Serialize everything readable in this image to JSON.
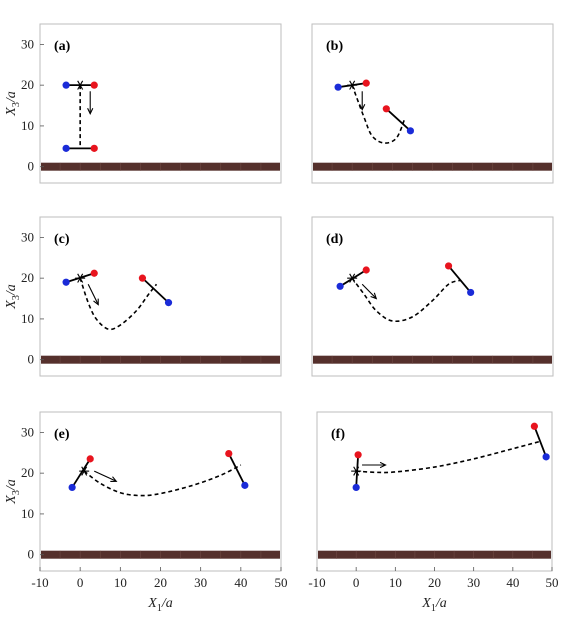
{
  "colors": {
    "wall": "#55302c",
    "wall_seam": "#6f4944",
    "red": "#e8141e",
    "blue": "#1a2bd8",
    "line": "#000000",
    "frame": "#bdbdbd"
  },
  "axis_labels": {
    "xlabel_base": "X",
    "xlabel_sub": "1",
    "xlabel_tail": "/a",
    "ylabel_base": "X",
    "ylabel_sub": "3",
    "ylabel_tail": "/a"
  },
  "chart_data": [
    {
      "type": "line",
      "panel_label": "(a)",
      "xlim": [
        -10,
        50
      ],
      "ylim": [
        -4,
        35
      ],
      "yticks": [
        0,
        10,
        20,
        30
      ],
      "xticks": [],
      "show_ylabel": true,
      "show_xlabel": false,
      "wall_y": 0,
      "path": [
        [
          0,
          20
        ],
        [
          0,
          4.5
        ]
      ],
      "rods": [
        {
          "red": [
            3.5,
            20
          ],
          "blue": [
            -3.5,
            20
          ]
        },
        {
          "red": [
            3.5,
            4.5
          ],
          "blue": [
            -3.5,
            4.5
          ]
        }
      ],
      "start": [
        0,
        20
      ],
      "arrow": {
        "from": [
          2.5,
          18.5
        ],
        "to": [
          2.5,
          13
        ]
      }
    },
    {
      "type": "line",
      "panel_label": "(b)",
      "xlim": [
        -10,
        50
      ],
      "ylim": [
        -4,
        35
      ],
      "yticks": [],
      "xticks": [],
      "show_ylabel": false,
      "show_xlabel": false,
      "wall_y": 0,
      "path": [
        [
          0,
          20
        ],
        [
          3,
          12
        ],
        [
          5,
          7.5
        ],
        [
          8,
          5.8
        ],
        [
          11,
          7
        ],
        [
          13,
          11.5
        ]
      ],
      "rods": [
        {
          "red": [
            3.5,
            20.5
          ],
          "blue": [
            -3.5,
            19.5
          ]
        },
        {
          "red": [
            8.5,
            14.2
          ],
          "blue": [
            14.5,
            8.8
          ]
        }
      ],
      "start": [
        0,
        20
      ],
      "arrow": {
        "from": [
          2.5,
          18.5
        ],
        "to": [
          2.5,
          14
        ]
      }
    },
    {
      "type": "line",
      "panel_label": "(c)",
      "xlim": [
        -10,
        50
      ],
      "ylim": [
        -4,
        35
      ],
      "yticks": [
        0,
        10,
        20,
        30
      ],
      "xticks": [],
      "show_ylabel": true,
      "show_xlabel": false,
      "wall_y": 0,
      "path": [
        [
          0,
          20
        ],
        [
          2,
          14
        ],
        [
          4,
          10
        ],
        [
          7,
          7.5
        ],
        [
          10,
          8.5
        ],
        [
          14,
          12
        ],
        [
          17,
          16
        ],
        [
          19,
          18.5
        ]
      ],
      "rods": [
        {
          "red": [
            3.5,
            21.2
          ],
          "blue": [
            -3.5,
            19
          ]
        },
        {
          "red": [
            15.5,
            20
          ],
          "blue": [
            22,
            14
          ]
        }
      ],
      "start": [
        0,
        20
      ],
      "arrow": {
        "from": [
          2,
          18.5
        ],
        "to": [
          4.5,
          13.5
        ]
      }
    },
    {
      "type": "line",
      "panel_label": "(d)",
      "xlim": [
        -10,
        50
      ],
      "ylim": [
        -4,
        35
      ],
      "yticks": [],
      "xticks": [],
      "show_ylabel": false,
      "show_xlabel": false,
      "wall_y": 0,
      "path": [
        [
          0,
          20
        ],
        [
          3,
          16
        ],
        [
          6,
          12
        ],
        [
          10,
          9.5
        ],
        [
          15,
          10.5
        ],
        [
          20,
          14.5
        ],
        [
          24,
          18.5
        ],
        [
          27,
          19.5
        ]
      ],
      "rods": [
        {
          "red": [
            3.5,
            22
          ],
          "blue": [
            -3,
            18
          ]
        },
        {
          "red": [
            24,
            23
          ],
          "blue": [
            29.5,
            16.5
          ]
        }
      ],
      "start": [
        0,
        20
      ],
      "arrow": {
        "from": [
          2.5,
          18.5
        ],
        "to": [
          6,
          15
        ]
      }
    },
    {
      "type": "line",
      "panel_label": "(e)",
      "xlim": [
        -10,
        50
      ],
      "ylim": [
        -4,
        35
      ],
      "yticks": [
        0,
        10,
        20,
        30
      ],
      "xticks": [
        -10,
        0,
        10,
        20,
        30,
        40,
        50
      ],
      "show_ylabel": true,
      "show_xlabel": true,
      "wall_y": 0,
      "path": [
        [
          1,
          20.5
        ],
        [
          5,
          17.5
        ],
        [
          10,
          15.2
        ],
        [
          15,
          14.5
        ],
        [
          20,
          15
        ],
        [
          28,
          17
        ],
        [
          35,
          19.5
        ],
        [
          40,
          22
        ]
      ],
      "rods": [
        {
          "red": [
            2.5,
            23.5
          ],
          "blue": [
            -2,
            16.5
          ]
        },
        {
          "red": [
            37,
            24.8
          ],
          "blue": [
            41,
            17
          ]
        }
      ],
      "start": [
        1,
        20.5
      ],
      "arrow": {
        "from": [
          3.5,
          20.5
        ],
        "to": [
          9,
          18
        ]
      }
    },
    {
      "type": "line",
      "panel_label": "(f)",
      "xlim": [
        -10,
        50
      ],
      "ylim": [
        -4,
        35
      ],
      "yticks": [],
      "xticks": [
        -10,
        0,
        10,
        20,
        30,
        40,
        50
      ],
      "show_ylabel": false,
      "show_xlabel": true,
      "wall_y": 0,
      "path": [
        [
          0,
          20.5
        ],
        [
          5,
          20.2
        ],
        [
          10,
          20.3
        ],
        [
          20,
          21.5
        ],
        [
          30,
          23.5
        ],
        [
          40,
          26
        ],
        [
          47,
          27.8
        ]
      ],
      "rods": [
        {
          "red": [
            0.5,
            24.5
          ],
          "blue": [
            0,
            16.5
          ]
        },
        {
          "red": [
            45.5,
            31.5
          ],
          "blue": [
            48.5,
            24
          ]
        }
      ],
      "start": [
        0,
        20.5
      ],
      "arrow": {
        "from": [
          1.5,
          22
        ],
        "to": [
          7.5,
          22
        ]
      }
    }
  ]
}
